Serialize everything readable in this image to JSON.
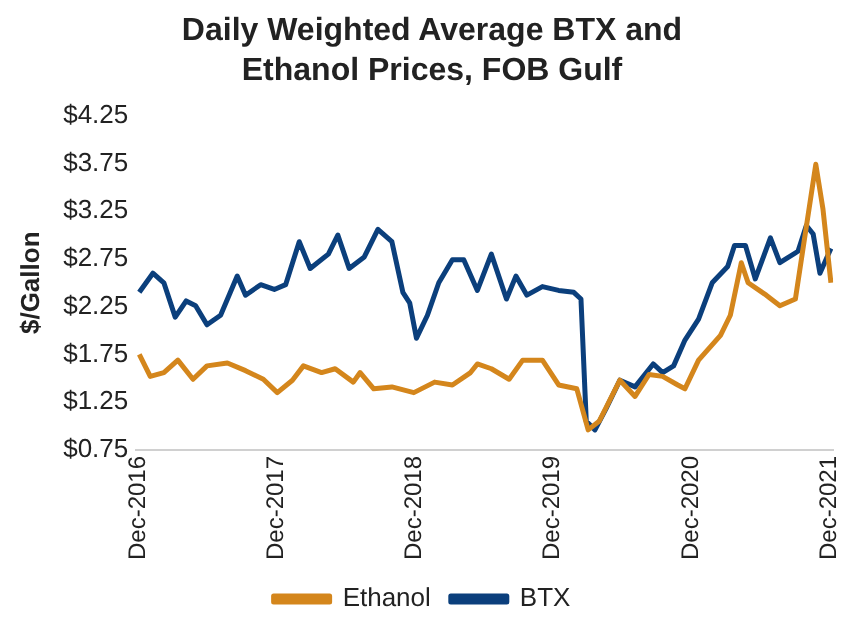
{
  "chart_data": {
    "type": "line",
    "title": "Daily Weighted Average BTX and Ethanol Prices, FOB Gulf",
    "ylabel": "$/Gallon",
    "xlim": [
      "2016-11-25",
      "2021-12-12"
    ],
    "xticks": [
      {
        "value": "2016-12",
        "label": "Dec-2016"
      },
      {
        "value": "2017-12",
        "label": "Dec-2017"
      },
      {
        "value": "2018-12",
        "label": "Dec-2018"
      },
      {
        "value": "2019-12",
        "label": "Dec-2019"
      },
      {
        "value": "2020-12",
        "label": "Dec-2020"
      },
      {
        "value": "2021-12",
        "label": "Dec-2021"
      }
    ],
    "ylim": [
      0.75,
      4.25
    ],
    "yticks": [
      {
        "value": 0.75,
        "label": "$0.75"
      },
      {
        "value": 1.25,
        "label": "$1.25"
      },
      {
        "value": 1.75,
        "label": "$1.75"
      },
      {
        "value": 2.25,
        "label": "$2.25"
      },
      {
        "value": 2.75,
        "label": "$2.75"
      },
      {
        "value": 3.25,
        "label": "$3.25"
      },
      {
        "value": 3.75,
        "label": "$3.75"
      },
      {
        "value": 4.25,
        "label": "$4.25"
      }
    ],
    "grid": false,
    "legend": "bottom",
    "marker": "none",
    "line_style": "solid",
    "series": [
      {
        "name": "Ethanol",
        "color": "#d4861c",
        "x": [
          "2016-12-03",
          "2017-01-01",
          "2017-02-06",
          "2017-03-15",
          "2017-04-24",
          "2017-05-31",
          "2017-07-24",
          "2017-09-10",
          "2017-10-27",
          "2017-12-03",
          "2018-01-12",
          "2018-02-10",
          "2018-03-30",
          "2018-05-05",
          "2018-06-22",
          "2018-07-10",
          "2018-08-15",
          "2018-10-02",
          "2018-11-29",
          "2019-01-23",
          "2019-03-11",
          "2019-04-28",
          "2019-05-16",
          "2019-06-22",
          "2019-08-08",
          "2019-09-13",
          "2019-11-04",
          "2019-12-17",
          "2020-02-03",
          "2020-03-04",
          "2020-04-02",
          "2020-05-27",
          "2020-07-06",
          "2020-08-12",
          "2020-09-17",
          "2020-10-27",
          "2020-11-15",
          "2020-12-21",
          "2021-02-17",
          "2021-03-15",
          "2021-04-13",
          "2021-05-01",
          "2021-06-18",
          "2021-07-24",
          "2021-09-03",
          "2021-09-21",
          "2021-10-27",
          "2021-11-15",
          "2021-12-06"
        ],
        "values": [
          1.75,
          1.52,
          1.56,
          1.69,
          1.49,
          1.63,
          1.66,
          1.58,
          1.49,
          1.35,
          1.48,
          1.63,
          1.56,
          1.6,
          1.46,
          1.56,
          1.39,
          1.41,
          1.35,
          1.46,
          1.43,
          1.56,
          1.65,
          1.6,
          1.49,
          1.69,
          1.69,
          1.43,
          1.39,
          0.96,
          1.05,
          1.48,
          1.31,
          1.54,
          1.52,
          1.43,
          1.39,
          1.69,
          1.95,
          2.16,
          2.71,
          2.5,
          2.37,
          2.26,
          2.33,
          2.8,
          3.74,
          3.27,
          2.5
        ]
      },
      {
        "name": "BTX",
        "color": "#0b3f7c",
        "x": [
          "2016-12-03",
          "2017-01-08",
          "2017-02-06",
          "2017-03-08",
          "2017-04-06",
          "2017-05-01",
          "2017-05-31",
          "2017-07-06",
          "2017-08-19",
          "2017-09-10",
          "2017-10-20",
          "2017-11-25",
          "2017-12-25",
          "2018-01-30",
          "2018-02-28",
          "2018-04-17",
          "2018-05-12",
          "2018-06-11",
          "2018-07-21",
          "2018-08-26",
          "2018-10-02",
          "2018-10-31",
          "2018-11-18",
          "2018-12-06",
          "2019-01-04",
          "2019-02-03",
          "2019-03-11",
          "2019-04-10",
          "2019-05-16",
          "2019-06-22",
          "2019-08-01",
          "2019-08-26",
          "2019-09-24",
          "2019-11-04",
          "2019-12-17",
          "2020-01-26",
          "2020-02-14",
          "2020-02-28",
          "2020-03-22",
          "2020-04-20",
          "2020-05-27",
          "2020-07-06",
          "2020-08-23",
          "2020-09-17",
          "2020-10-16",
          "2020-11-15",
          "2020-12-21",
          "2021-01-26",
          "2021-03-08",
          "2021-03-26",
          "2021-04-24",
          "2021-05-20",
          "2021-06-29",
          "2021-07-24",
          "2021-09-10",
          "2021-10-02",
          "2021-10-20",
          "2021-11-07",
          "2021-12-06"
        ],
        "values": [
          2.4,
          2.6,
          2.5,
          2.14,
          2.31,
          2.26,
          2.06,
          2.16,
          2.57,
          2.37,
          2.48,
          2.43,
          2.48,
          2.93,
          2.65,
          2.8,
          3.0,
          2.65,
          2.77,
          3.06,
          2.93,
          2.4,
          2.29,
          1.92,
          2.16,
          2.5,
          2.74,
          2.74,
          2.42,
          2.8,
          2.33,
          2.57,
          2.37,
          2.46,
          2.42,
          2.4,
          2.33,
          1.05,
          0.96,
          1.18,
          1.48,
          1.41,
          1.65,
          1.56,
          1.63,
          1.9,
          2.12,
          2.5,
          2.67,
          2.89,
          2.89,
          2.54,
          2.97,
          2.71,
          2.83,
          3.1,
          3.01,
          2.6,
          2.86
        ]
      }
    ]
  }
}
